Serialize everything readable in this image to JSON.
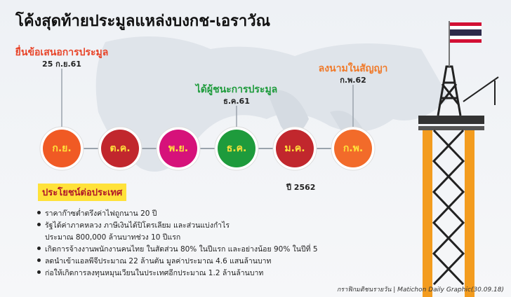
{
  "title": "โค้งสุดท้ายประมูลแหล่งบงกช-เอราวัณ",
  "events": [
    {
      "label": "ยื่นข้อเสนอการประมูล",
      "date": "25 ก.ย.61",
      "color": "#e8452a"
    },
    {
      "label": "ได้ผู้ชนะการประมูล",
      "date": "ธ.ค.61",
      "color": "#1e9b3c"
    },
    {
      "label": "ลงนามในสัญญา",
      "date": "ก.พ.62",
      "color": "#f07a2a"
    }
  ],
  "months": [
    {
      "label": "ก.ย.",
      "color": "#f05a24"
    },
    {
      "label": "ต.ค.",
      "color": "#c1272d"
    },
    {
      "label": "พ.ย.",
      "color": "#d6127a"
    },
    {
      "label": "ธ.ค.",
      "color": "#1e9b3c"
    },
    {
      "label": "ม.ค.",
      "color": "#c1272d"
    },
    {
      "label": "ก.พ.",
      "color": "#f26b2a"
    }
  ],
  "year": "ปี 2562",
  "benefits": {
    "heading": "ประโยชน์ต่อประเทศ",
    "items": [
      [
        "ราคาก๊าซต่ำตรึงค่าไฟถูกนาน 20 ปี"
      ],
      [
        "รัฐได้ค่าภาคหลวง ภาษีเงินได้ปิโตรเลียม และส่วนแบ่งกำไร",
        "ประมาณ 800,000 ล้านบาทช่วง 10 ปีแรก"
      ],
      [
        "เกิดการจ้างงานพนักงานคนไทย ในสัดส่วน 80% ในปีแรก และอย่างน้อย 90% ในปีที่ 5"
      ],
      [
        "ลดนำเข้าแอลพีจีประมาณ 22 ล้านตัน มูลค่าประมาณ 4.6 แสนล้านบาท"
      ],
      [
        "ก่อให้เกิดการลงทุนหมุนเวียนในประเทศอีกประมาณ 1.2 ล้านล้านบาท"
      ]
    ]
  },
  "credit": "กราฟิกมติชนรายวัน | Matichon Daily Graphic(30.09.18)"
}
